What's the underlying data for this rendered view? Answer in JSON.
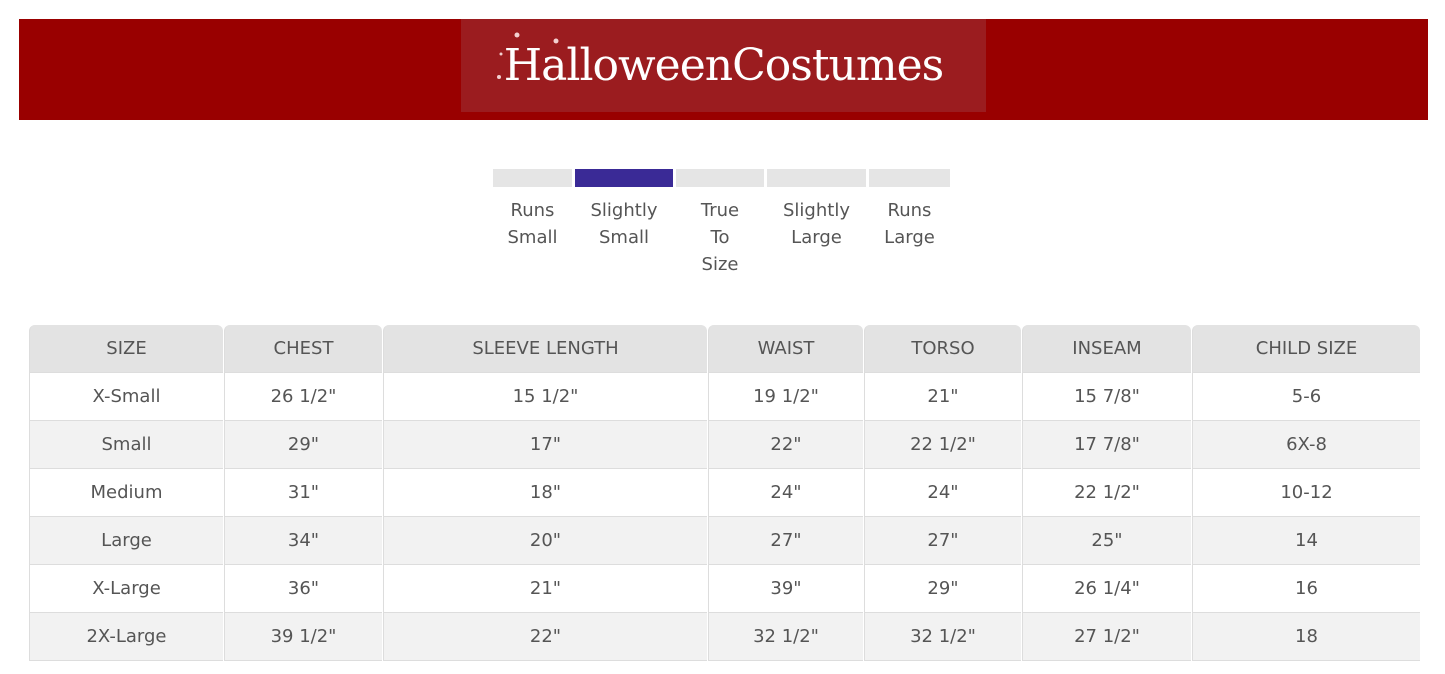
{
  "brand": {
    "logo_text": "HalloweenCostumes",
    "banner_color": "#990000"
  },
  "fit_scale": {
    "selected_index": 1,
    "selected_color": "#3a2a96",
    "options": [
      "Runs Small",
      "Slightly Small",
      "True To Size",
      "Slightly Large",
      "Runs Large"
    ]
  },
  "size_chart": {
    "headers": [
      "SIZE",
      "CHEST",
      "SLEEVE LENGTH",
      "WAIST",
      "TORSO",
      "INSEAM",
      "CHILD SIZE"
    ],
    "rows": [
      [
        "X-Small",
        "26 1/2\"",
        "15 1/2\"",
        "19 1/2\"",
        "21\"",
        "15 7/8\"",
        "5-6"
      ],
      [
        "Small",
        "29\"",
        "17\"",
        "22\"",
        "22 1/2\"",
        "17 7/8\"",
        "6X-8"
      ],
      [
        "Medium",
        "31\"",
        "18\"",
        "24\"",
        "24\"",
        "22 1/2\"",
        "10-12"
      ],
      [
        "Large",
        "34\"",
        "20\"",
        "27\"",
        "27\"",
        "25\"",
        "14"
      ],
      [
        "X-Large",
        "36\"",
        "21\"",
        "39\"",
        "29\"",
        "26 1/4\"",
        "16"
      ],
      [
        "2X-Large",
        "39 1/2\"",
        "22\"",
        "32 1/2\"",
        "32 1/2\"",
        "27 1/2\"",
        "18"
      ]
    ]
  }
}
